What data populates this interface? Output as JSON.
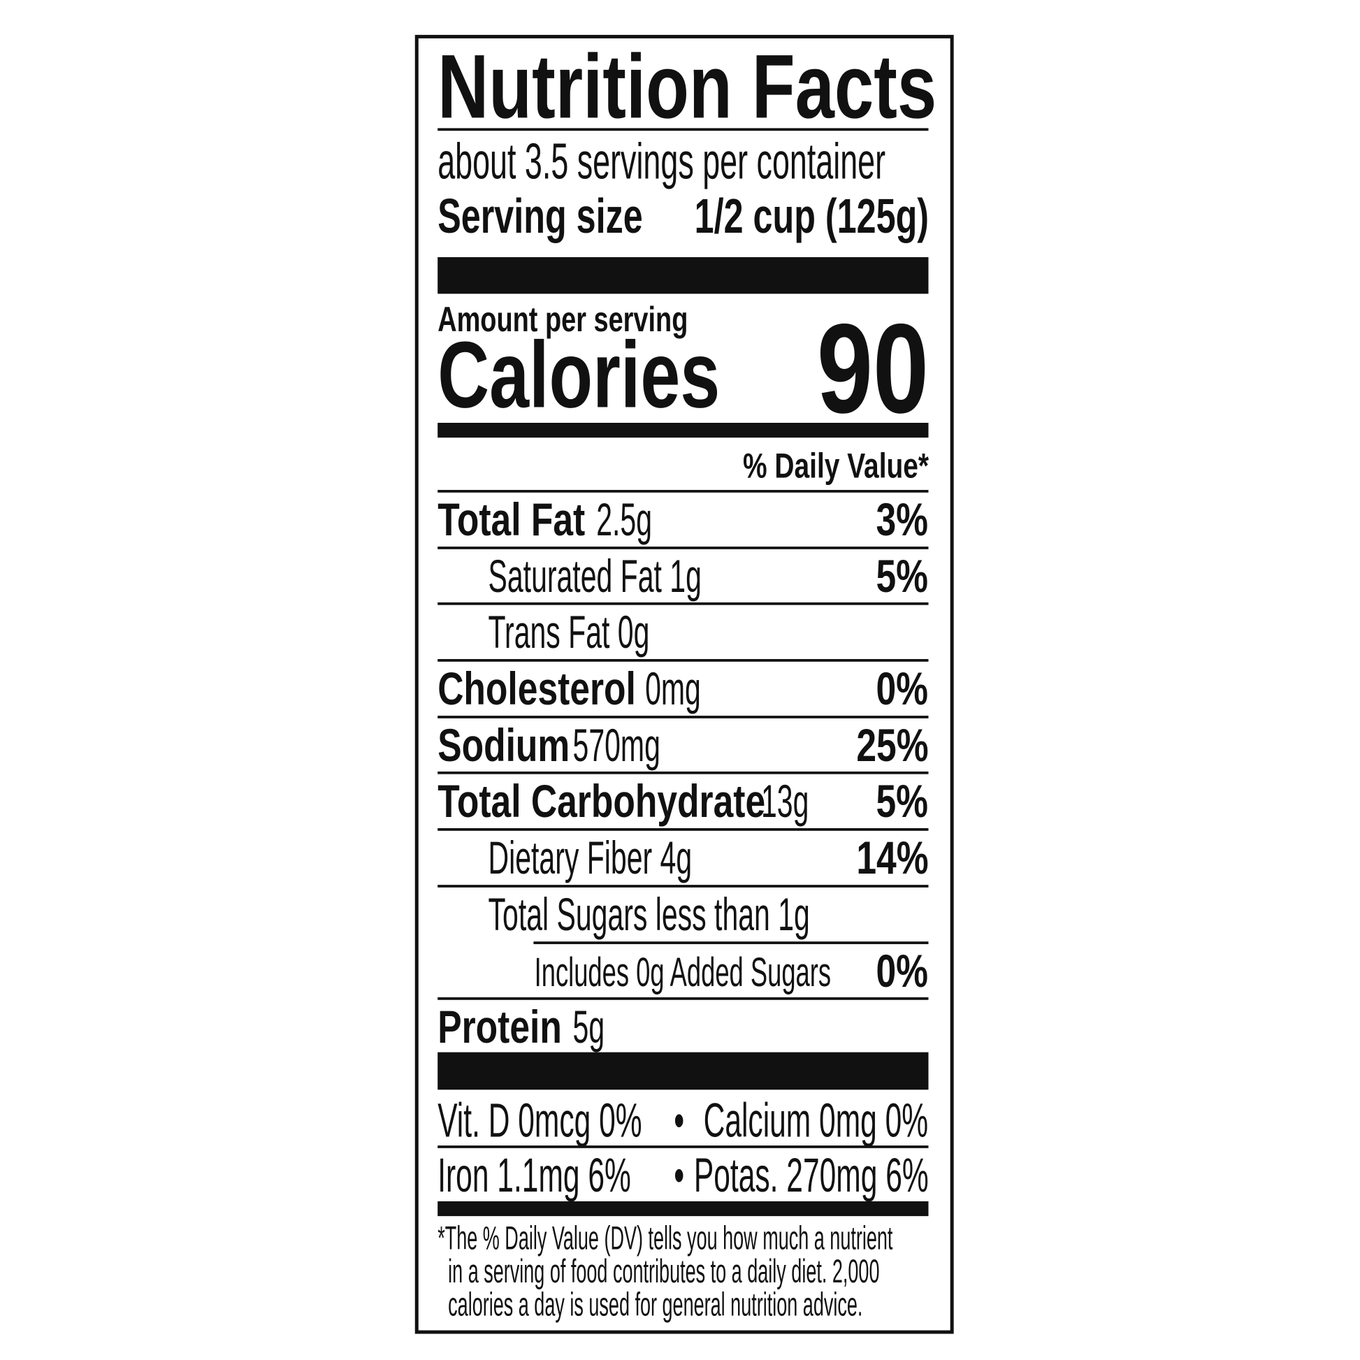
{
  "title": "Nutrition Facts",
  "servings_per_container": "about 3.5 servings per container",
  "serving_size_label": "Serving size",
  "serving_size_value": "1/2 cup (125g)",
  "amount_per_serving": "Amount per serving",
  "calories_label": "Calories",
  "calories_value": "90",
  "daily_value_header": "% Daily Value*",
  "nutrients": [
    {
      "name": "Total Fat",
      "amount": "2.5g",
      "dv": "3%"
    },
    {
      "name": "Saturated Fat 1g",
      "dv": "5%"
    },
    {
      "name": "Trans Fat 0g"
    },
    {
      "name": "Cholesterol",
      "amount": "0mg",
      "dv": "0%"
    },
    {
      "name": "Sodium",
      "amount": "570mg",
      "dv": "25%"
    },
    {
      "name": "Total Carbohydrate",
      "amount": "13g",
      "dv": "5%"
    },
    {
      "name": "Dietary Fiber 4g",
      "dv": "14%"
    },
    {
      "name": "Total Sugars less than 1g"
    },
    {
      "name": "Includes 0g Added Sugars",
      "dv": "0%"
    },
    {
      "name": "Protein",
      "amount": "5g"
    }
  ],
  "vitamins": {
    "vit_d": "Vit. D 0mcg 0%",
    "calcium": "Calcium 0mg 0%",
    "iron": "Iron 1.1mg 6%",
    "potassium": "Potas. 270mg 6%",
    "bullet": "•"
  },
  "footnote": [
    "*The % Daily Value (DV) tells you how much a nutrient",
    "in a serving of food contributes to a daily diet. 2,000",
    "calories a day is used for general nutrition advice."
  ]
}
